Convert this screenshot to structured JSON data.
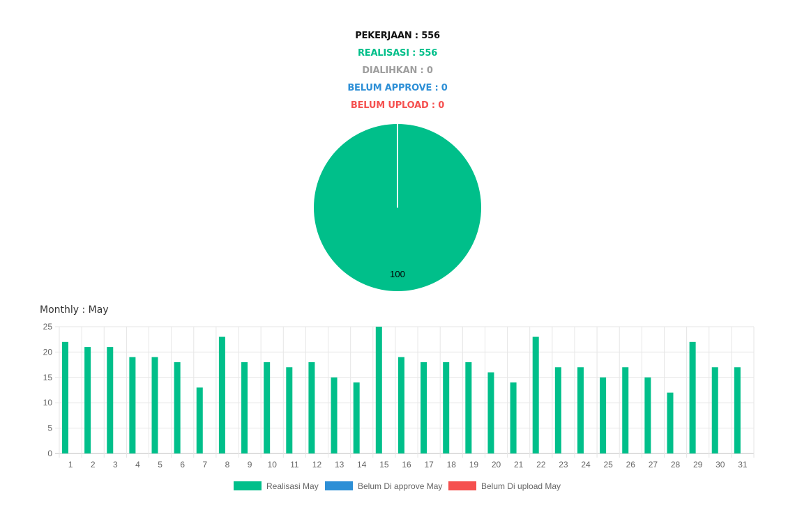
{
  "summary": {
    "pekerjaan": "PEKERJAAN : 556",
    "realisasi": "REALISASI : 556",
    "dialihkan": "DIALIHKAN : 0",
    "belum_approve": "BELUM APPROVE : 0",
    "belum_upload": "BELUM UPLOAD : 0"
  },
  "colors": {
    "pekerjaan": "#111111",
    "realisasi": "#00bf8a",
    "dialihkan": "#9e9e9e",
    "belum_approve": "#2d8fd6",
    "belum_upload": "#f5504f",
    "grid": "#e6e6e6",
    "axis_text": "#666666"
  },
  "chart_data": [
    {
      "type": "pie",
      "slices": [
        {
          "name": "Realisasi",
          "value": 100,
          "color": "#00bf8a"
        }
      ],
      "data_label": "100"
    },
    {
      "type": "bar",
      "title": "Monthly : May",
      "categories": [
        "1",
        "2",
        "3",
        "4",
        "5",
        "6",
        "7",
        "8",
        "9",
        "10",
        "11",
        "12",
        "13",
        "14",
        "15",
        "16",
        "17",
        "18",
        "19",
        "20",
        "21",
        "22",
        "23",
        "24",
        "25",
        "26",
        "27",
        "28",
        "29",
        "30",
        "31"
      ],
      "series": [
        {
          "name": "Realisasi May",
          "color": "#00bf8a",
          "values": [
            22,
            21,
            21,
            19,
            19,
            18,
            13,
            23,
            18,
            18,
            17,
            18,
            15,
            14,
            25,
            19,
            18,
            18,
            18,
            16,
            14,
            23,
            17,
            17,
            15,
            17,
            15,
            12,
            22,
            17,
            17
          ]
        },
        {
          "name": "Belum Di approve May",
          "color": "#2d8fd6",
          "values": [
            0,
            0,
            0,
            0,
            0,
            0,
            0,
            0,
            0,
            0,
            0,
            0,
            0,
            0,
            0,
            0,
            0,
            0,
            0,
            0,
            0,
            0,
            0,
            0,
            0,
            0,
            0,
            0,
            0,
            0,
            0
          ]
        },
        {
          "name": "Belum Di upload May",
          "color": "#f5504f",
          "values": [
            0,
            0,
            0,
            0,
            0,
            0,
            0,
            0,
            0,
            0,
            0,
            0,
            0,
            0,
            0,
            0,
            0,
            0,
            0,
            0,
            0,
            0,
            0,
            0,
            0,
            0,
            0,
            0,
            0,
            0,
            0
          ]
        }
      ],
      "ylim": [
        0,
        25
      ],
      "yticks": [
        "0",
        "5",
        "10",
        "15",
        "20",
        "25"
      ],
      "grid": true,
      "legend_position": "bottom-center"
    }
  ]
}
